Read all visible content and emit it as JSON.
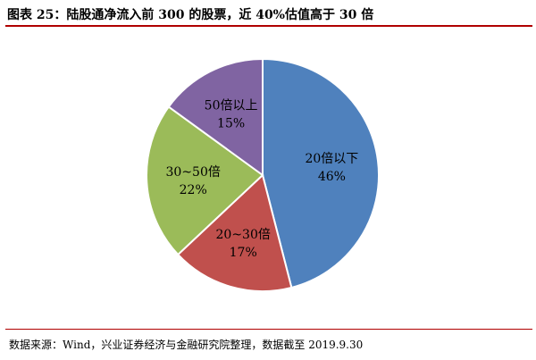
{
  "page": {
    "title": "图表 25：陆股通净流入前 300 的股票，近 40%估值高于 30 倍",
    "source": "数据来源：Wind，兴业证券经济与金融研究院整理，数据截至 2019.9.30"
  },
  "colors": {
    "rule": "#b00000",
    "slice_stroke": "#ffffff"
  },
  "chart_data": {
    "type": "pie",
    "start_angle_deg": 0,
    "direction": "clockwise",
    "legend": "none",
    "slices": [
      {
        "label": "20倍以下",
        "value": 46,
        "value_label": "46%",
        "color": "#4f81bd"
      },
      {
        "label": "20~30倍",
        "value": 17,
        "value_label": "17%",
        "color": "#c0504d"
      },
      {
        "label": "30~50倍",
        "value": 22,
        "value_label": "22%",
        "color": "#9bbb59"
      },
      {
        "label": "50倍以上",
        "value": 15,
        "value_label": "15%",
        "color": "#8064a2"
      }
    ]
  }
}
